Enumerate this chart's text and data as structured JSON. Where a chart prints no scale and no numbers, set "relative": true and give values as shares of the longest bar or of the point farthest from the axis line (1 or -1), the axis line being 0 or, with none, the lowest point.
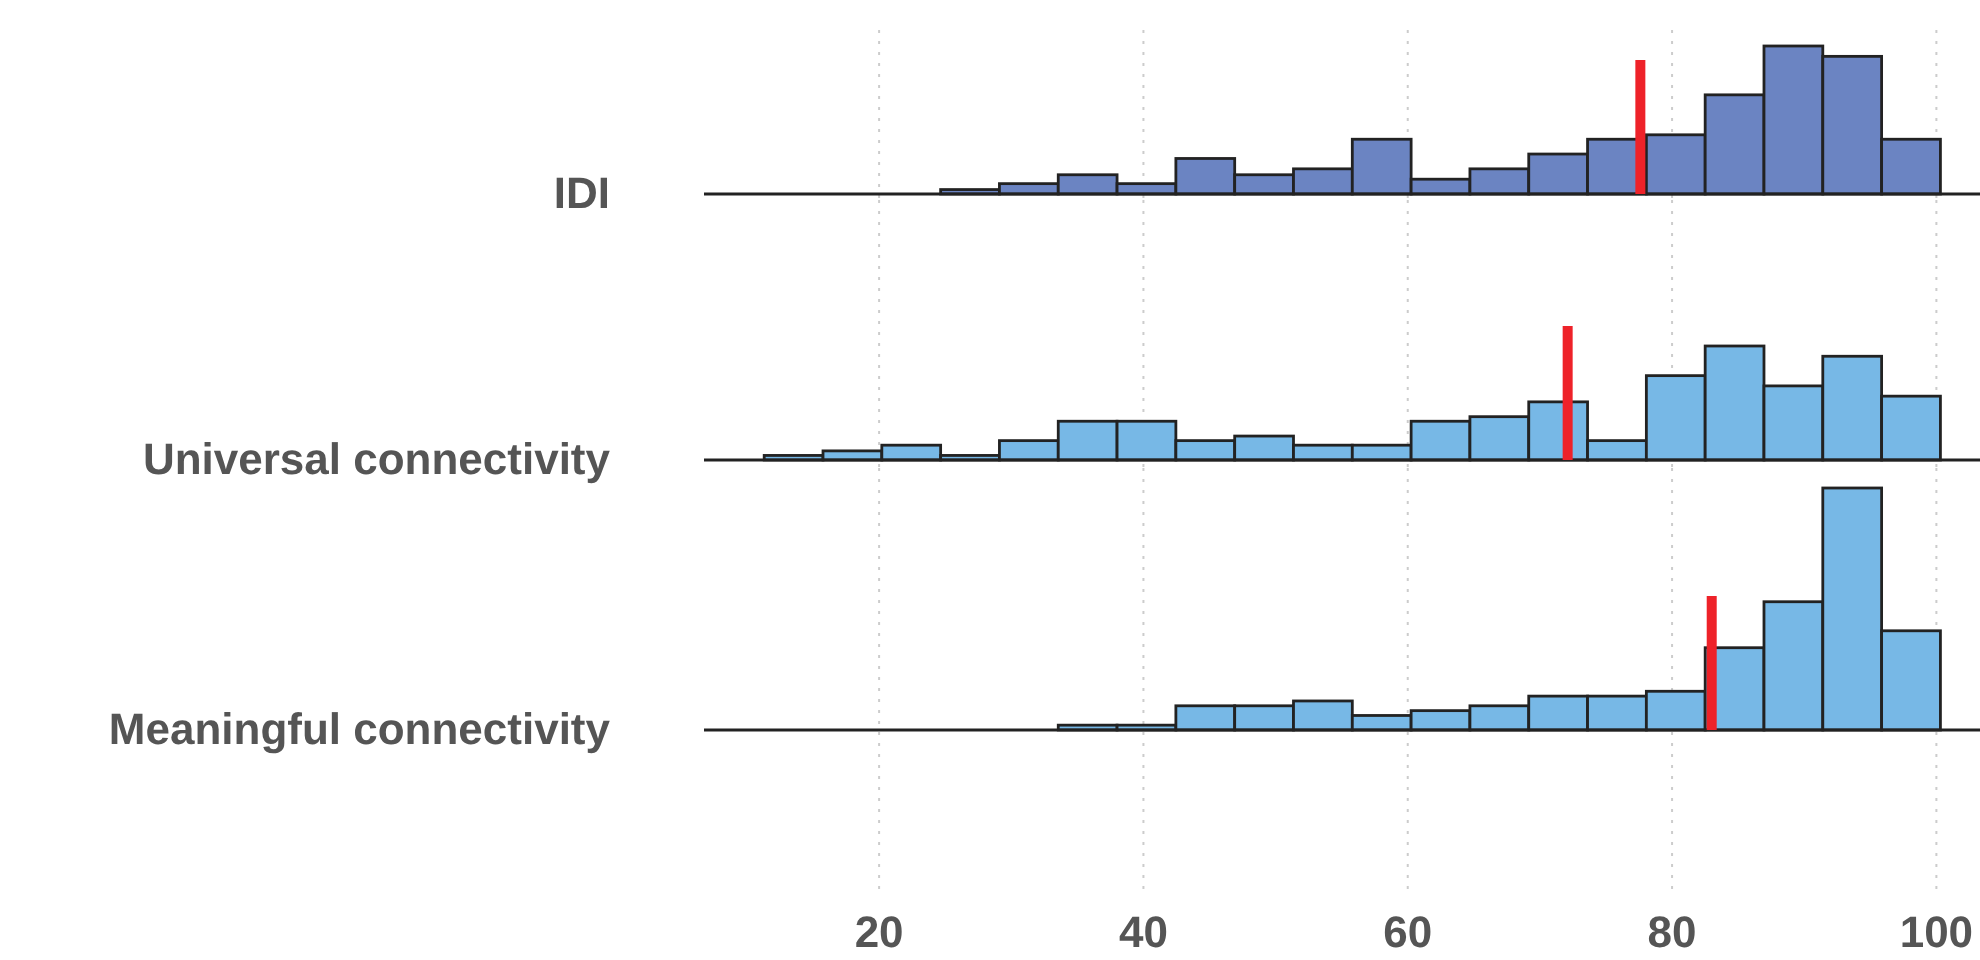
{
  "chart_data": [
    {
      "type": "bar",
      "ylabel": "IDI",
      "relative": true,
      "color": "#6b84c2",
      "x": [
        26.88,
        31.33,
        35.78,
        40.23,
        44.68,
        49.13,
        53.58,
        58.03,
        62.48,
        66.93,
        71.38,
        75.83,
        80.28,
        84.73,
        89.18,
        93.63,
        98.08
      ],
      "values": [
        0.03,
        0.07,
        0.13,
        0.07,
        0.24,
        0.13,
        0.17,
        0.37,
        0.1,
        0.17,
        0.27,
        0.37,
        0.4,
        0.67,
        1,
        0.93,
        0.37
      ],
      "xlim": [
        6.75,
        103.3
      ],
      "xticks": [
        20,
        40,
        60,
        80,
        100
      ],
      "grid": "x",
      "tick_labels": false,
      "ref_lines": [
        {
          "axis": "x",
          "value": 77.6,
          "color": "#ee2229"
        }
      ]
    },
    {
      "type": "bar",
      "ylabel": "Universal connectivity",
      "relative": true,
      "color": "#77b8e6",
      "x": [
        13.53,
        17.98,
        22.43,
        26.88,
        31.33,
        35.78,
        40.23,
        44.68,
        49.13,
        53.58,
        58.03,
        62.48,
        66.93,
        71.38,
        75.83,
        80.28,
        84.73,
        89.18,
        93.63,
        98.08
      ],
      "values": [
        0.04,
        0.08,
        0.13,
        0.04,
        0.17,
        0.34,
        0.34,
        0.17,
        0.21,
        0.13,
        0.13,
        0.34,
        0.38,
        0.51,
        0.17,
        0.74,
        1,
        0.65,
        0.91,
        0.56
      ],
      "xlim": [
        6.75,
        103.3
      ],
      "xticks": [
        20,
        40,
        60,
        80,
        100
      ],
      "grid": "x",
      "tick_labels": false,
      "ref_lines": [
        {
          "axis": "x",
          "value": 72.1,
          "color": "#ee2229"
        }
      ]
    },
    {
      "type": "bar",
      "ylabel": "Meaningful connectivity",
      "relative": true,
      "color": "#77b8e6",
      "x": [
        35.78,
        40.23,
        44.68,
        49.13,
        53.58,
        58.03,
        62.48,
        66.93,
        71.38,
        75.83,
        80.28,
        84.73,
        89.18,
        93.63,
        98.08
      ],
      "values": [
        0.02,
        0.02,
        0.1,
        0.1,
        0.12,
        0.06,
        0.08,
        0.1,
        0.14,
        0.14,
        0.16,
        0.34,
        0.53,
        1,
        0.41
      ],
      "xlim": [
        6.75,
        103.3
      ],
      "xticks": [
        20,
        40,
        60,
        80,
        100
      ],
      "grid": "x",
      "tick_labels": "x",
      "ref_lines": [
        {
          "axis": "x",
          "value": 83.0,
          "color": "#ee2229"
        }
      ]
    }
  ]
}
